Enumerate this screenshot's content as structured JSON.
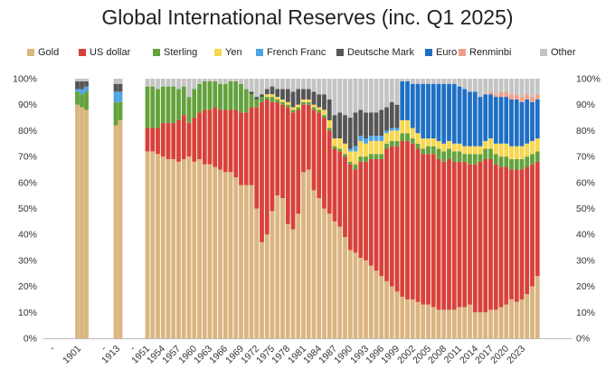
{
  "chart_data": {
    "type": "bar",
    "stacked": true,
    "title": "Global International Reserves (inc. Q1 2025)",
    "xlabel": "",
    "ylabel": "",
    "ylim": [
      0,
      100
    ],
    "y_tick_labels": [
      "0%",
      "10%",
      "20%",
      "30%",
      "40%",
      "50%",
      "60%",
      "70%",
      "80%",
      "90%",
      "100%"
    ],
    "grid": false,
    "legend_position": "top",
    "x_tick_labels": [
      "-",
      "1901",
      "-",
      "1913",
      "-",
      "1951",
      "1954",
      "1957",
      "1960",
      "1963",
      "1966",
      "1969",
      "1972",
      "1975",
      "1978",
      "1981",
      "1984",
      "1987",
      "1990",
      "1993",
      "1996",
      "1999",
      "2002",
      "2005",
      "2008",
      "2011",
      "2014",
      "2017",
      "2020",
      "2023"
    ],
    "series": [
      {
        "name": "Gold",
        "color": "#dbb57f"
      },
      {
        "name": "US dollar",
        "color": "#d8413a"
      },
      {
        "name": "Sterling",
        "color": "#63a23c"
      },
      {
        "name": "Yen",
        "color": "#f8d64e"
      },
      {
        "name": "French Franc",
        "color": "#4ea3e4"
      },
      {
        "name": "Deutsche Mark",
        "color": "#555555"
      },
      {
        "name": "Euro",
        "color": "#1e6fc4"
      },
      {
        "name": "Renminbi",
        "color": "#eea08a"
      },
      {
        "name": "Other",
        "color": "#c4c4c4"
      }
    ],
    "bars": [
      {
        "x": "1899",
        "Gold": 90,
        "Sterling": 5,
        "French Franc": 1,
        "Deutsche Mark": 3,
        "Other": 1
      },
      {
        "x": "1900",
        "Gold": 89,
        "Sterling": 5,
        "French Franc": 2,
        "Deutsche Mark": 3,
        "Other": 1
      },
      {
        "x": "1901",
        "Gold": 88,
        "Sterling": 7,
        "French Franc": 2,
        "Deutsche Mark": 2,
        "Other": 1
      },
      {
        "x": "1912",
        "Gold": 82,
        "Sterling": 9,
        "French Franc": 4,
        "Deutsche Mark": 3,
        "Other": 2
      },
      {
        "x": "1913",
        "Gold": 84,
        "Sterling": 7,
        "French Franc": 4,
        "Deutsche Mark": 3,
        "Other": 2
      },
      {
        "x": "1950",
        "Gold": 72,
        "US dollar": 9,
        "Sterling": 16,
        "Other": 3
      },
      {
        "x": "1951",
        "Gold": 72,
        "US dollar": 9,
        "Sterling": 16,
        "Other": 3
      },
      {
        "x": "1952",
        "Gold": 71,
        "US dollar": 10,
        "Sterling": 15,
        "Other": 4
      },
      {
        "x": "1953",
        "Gold": 70,
        "US dollar": 13,
        "Sterling": 14,
        "Other": 3
      },
      {
        "x": "1954",
        "Gold": 69,
        "US dollar": 14,
        "Sterling": 14,
        "Other": 3
      },
      {
        "x": "1955",
        "Gold": 69,
        "US dollar": 14,
        "Sterling": 14,
        "Other": 3
      },
      {
        "x": "1956",
        "Gold": 68,
        "US dollar": 16,
        "Sterling": 12,
        "Other": 4
      },
      {
        "x": "1957",
        "Gold": 69,
        "US dollar": 17,
        "Sterling": 11,
        "Other": 3
      },
      {
        "x": "1958",
        "Gold": 70,
        "US dollar": 13,
        "Sterling": 10,
        "Other": 7
      },
      {
        "x": "1959",
        "Gold": 68,
        "US dollar": 17,
        "Sterling": 11,
        "Other": 4
      },
      {
        "x": "1960",
        "Gold": 69,
        "US dollar": 18,
        "Sterling": 11,
        "Other": 2
      },
      {
        "x": "1961",
        "Gold": 67,
        "US dollar": 21,
        "Sterling": 11,
        "Other": 1
      },
      {
        "x": "1962",
        "Gold": 67,
        "US dollar": 21,
        "Sterling": 11,
        "Other": 1
      },
      {
        "x": "1963",
        "Gold": 66,
        "US dollar": 23,
        "Sterling": 10,
        "Other": 1
      },
      {
        "x": "1964",
        "Gold": 65,
        "US dollar": 23,
        "Sterling": 10,
        "Other": 2
      },
      {
        "x": "1965",
        "Gold": 64,
        "US dollar": 24,
        "Sterling": 10,
        "Other": 2
      },
      {
        "x": "1966",
        "Gold": 64,
        "US dollar": 24,
        "Sterling": 11,
        "Other": 1
      },
      {
        "x": "1967",
        "Gold": 62,
        "US dollar": 26,
        "Sterling": 11,
        "Other": 1
      },
      {
        "x": "1968",
        "Gold": 59,
        "US dollar": 28,
        "Sterling": 11,
        "Other": 2
      },
      {
        "x": "1969",
        "Gold": 59,
        "US dollar": 28,
        "Sterling": 9,
        "Other": 4
      },
      {
        "x": "1970",
        "Gold": 59,
        "US dollar": 30,
        "Sterling": 5,
        "Deutsche Mark": 1,
        "Other": 5
      },
      {
        "x": "1971",
        "Gold": 50,
        "US dollar": 39,
        "Sterling": 3,
        "Deutsche Mark": 1,
        "Other": 7
      },
      {
        "x": "1972",
        "Gold": 37,
        "US dollar": 54,
        "Sterling": 2,
        "Deutsche Mark": 1,
        "Other": 6
      },
      {
        "x": "1973",
        "Gold": 40,
        "US dollar": 52,
        "Sterling": 1,
        "Yen": 1,
        "Deutsche Mark": 2,
        "Other": 4
      },
      {
        "x": "1974",
        "Gold": 49,
        "US dollar": 42,
        "Sterling": 2,
        "Yen": 1,
        "Deutsche Mark": 3,
        "Other": 3
      },
      {
        "x": "1975",
        "Gold": 55,
        "US dollar": 36,
        "Sterling": 1,
        "Yen": 1,
        "Deutsche Mark": 3,
        "Other": 4
      },
      {
        "x": "1976",
        "Gold": 54,
        "US dollar": 36,
        "Sterling": 1,
        "Yen": 1,
        "Deutsche Mark": 4,
        "Other": 4
      },
      {
        "x": "1977",
        "Gold": 44,
        "US dollar": 45,
        "Sterling": 1,
        "Yen": 1,
        "Deutsche Mark": 5,
        "Other": 4
      },
      {
        "x": "1978",
        "Gold": 42,
        "US dollar": 45,
        "Sterling": 1,
        "Yen": 1,
        "Deutsche Mark": 6,
        "Other": 5
      },
      {
        "x": "1979",
        "Gold": 48,
        "US dollar": 40,
        "Sterling": 1,
        "Yen": 1,
        "Deutsche Mark": 6,
        "Other": 4
      },
      {
        "x": "1980",
        "Gold": 64,
        "US dollar": 26,
        "Sterling": 1,
        "Yen": 1,
        "Deutsche Mark": 4,
        "Other": 4
      },
      {
        "x": "1981",
        "Gold": 65,
        "US dollar": 25,
        "Sterling": 1,
        "Yen": 1,
        "Deutsche Mark": 4,
        "Other": 4
      },
      {
        "x": "1982",
        "Gold": 57,
        "US dollar": 31,
        "Sterling": 1,
        "Yen": 1,
        "Deutsche Mark": 5,
        "Other": 5
      },
      {
        "x": "1983",
        "Gold": 54,
        "US dollar": 33,
        "Sterling": 1,
        "Yen": 1,
        "Deutsche Mark": 5,
        "Other": 6
      },
      {
        "x": "1984",
        "Gold": 50,
        "US dollar": 35,
        "Sterling": 1,
        "Yen": 2,
        "Deutsche Mark": 6,
        "Other": 6
      },
      {
        "x": "1985",
        "Gold": 48,
        "US dollar": 32,
        "Sterling": 1,
        "Yen": 3,
        "Deutsche Mark": 8,
        "Other": 8
      },
      {
        "x": "1986",
        "Gold": 45,
        "US dollar": 28,
        "Sterling": 1,
        "Yen": 3,
        "Deutsche Mark": 9,
        "Other": 14
      },
      {
        "x": "1987",
        "Gold": 43,
        "US dollar": 29,
        "Sterling": 1,
        "Yen": 4,
        "Deutsche Mark": 10,
        "Other": 13
      },
      {
        "x": "1988",
        "Gold": 39,
        "US dollar": 31,
        "Sterling": 1,
        "Yen": 4,
        "Deutsche Mark": 11,
        "Other": 14
      },
      {
        "x": "1989",
        "Gold": 34,
        "US dollar": 33,
        "Sterling": 1,
        "Yen": 4,
        "French Franc": 1,
        "Deutsche Mark": 12,
        "Other": 15
      },
      {
        "x": "1990",
        "Gold": 33,
        "US dollar": 32,
        "Sterling": 2,
        "Yen": 5,
        "French Franc": 2,
        "Deutsche Mark": 13,
        "Other": 13
      },
      {
        "x": "1991",
        "Gold": 31,
        "US dollar": 37,
        "Sterling": 2,
        "Yen": 6,
        "French Franc": 2,
        "Deutsche Mark": 10,
        "Other": 12
      },
      {
        "x": "1992",
        "Gold": 30,
        "US dollar": 38,
        "Sterling": 2,
        "Yen": 5,
        "French Franc": 2,
        "Deutsche Mark": 10,
        "Other": 13
      },
      {
        "x": "1993",
        "Gold": 28,
        "US dollar": 41,
        "Sterling": 2,
        "Yen": 5,
        "French Franc": 2,
        "Deutsche Mark": 9,
        "Other": 13
      },
      {
        "x": "1994",
        "Gold": 26,
        "US dollar": 43,
        "Sterling": 2,
        "Yen": 5,
        "French Franc": 2,
        "Deutsche Mark": 9,
        "Other": 13
      },
      {
        "x": "1995",
        "Gold": 24,
        "US dollar": 45,
        "Sterling": 2,
        "Yen": 5,
        "French Franc": 2,
        "Deutsche Mark": 10,
        "Other": 12
      },
      {
        "x": "1996",
        "Gold": 22,
        "US dollar": 51,
        "Sterling": 2,
        "Yen": 4,
        "French Franc": 1,
        "Deutsche Mark": 9,
        "Other": 11
      },
      {
        "x": "1997",
        "Gold": 20,
        "US dollar": 54,
        "Sterling": 2,
        "Yen": 4,
        "French Franc": 1,
        "Deutsche Mark": 10,
        "Other": 9
      },
      {
        "x": "1998",
        "Gold": 18,
        "US dollar": 56,
        "Sterling": 2,
        "Yen": 4,
        "French Franc": 1,
        "Deutsche Mark": 9,
        "Other": 10
      },
      {
        "x": "1999",
        "Gold": 16,
        "US dollar": 60,
        "Sterling": 3,
        "Yen": 5,
        "Euro": 15,
        "Other": 1
      },
      {
        "x": "2000",
        "Gold": 15,
        "US dollar": 61,
        "Sterling": 3,
        "Yen": 5,
        "Euro": 15,
        "Other": 1
      },
      {
        "x": "2001",
        "Gold": 15,
        "US dollar": 60,
        "Sterling": 2,
        "Yen": 4,
        "Euro": 17,
        "Other": 2
      },
      {
        "x": "2002",
        "Gold": 14,
        "US dollar": 59,
        "Sterling": 2,
        "Yen": 4,
        "Euro": 19,
        "Other": 2
      },
      {
        "x": "2003",
        "Gold": 13,
        "US dollar": 58,
        "Sterling": 2,
        "Yen": 4,
        "Euro": 21,
        "Other": 2
      },
      {
        "x": "2004",
        "Gold": 13,
        "US dollar": 58,
        "Sterling": 3,
        "Yen": 3,
        "Euro": 21,
        "Other": 2
      },
      {
        "x": "2005",
        "Gold": 12,
        "US dollar": 59,
        "Sterling": 3,
        "Yen": 3,
        "Euro": 21,
        "Other": 2
      },
      {
        "x": "2006",
        "Gold": 11,
        "US dollar": 58,
        "Sterling": 4,
        "Yen": 3,
        "Euro": 22,
        "Other": 2
      },
      {
        "x": "2007",
        "Gold": 11,
        "US dollar": 57,
        "Sterling": 4,
        "Yen": 3,
        "Euro": 23,
        "Other": 2
      },
      {
        "x": "2008",
        "Gold": 11,
        "US dollar": 58,
        "Sterling": 4,
        "Yen": 3,
        "Euro": 22,
        "Other": 2
      },
      {
        "x": "2009",
        "Gold": 11,
        "US dollar": 57,
        "Sterling": 4,
        "Yen": 3,
        "Euro": 23,
        "Other": 2
      },
      {
        "x": "2010",
        "Gold": 12,
        "US dollar": 56,
        "Sterling": 4,
        "Yen": 3,
        "Euro": 22,
        "Other": 3
      },
      {
        "x": "2011",
        "Gold": 12,
        "US dollar": 56,
        "Sterling": 3,
        "Yen": 3,
        "Euro": 22,
        "Other": 4
      },
      {
        "x": "2012",
        "Gold": 13,
        "US dollar": 54,
        "Sterling": 4,
        "Yen": 3,
        "Euro": 21,
        "Other": 5
      },
      {
        "x": "2013",
        "Gold": 10,
        "US dollar": 57,
        "Sterling": 4,
        "Yen": 3,
        "Euro": 21,
        "Other": 5
      },
      {
        "x": "2014",
        "Gold": 10,
        "US dollar": 58,
        "Sterling": 3,
        "Yen": 3,
        "Euro": 19,
        "Other": 7
      },
      {
        "x": "2015",
        "Gold": 10,
        "US dollar": 59,
        "Sterling": 4,
        "Yen": 3,
        "Euro": 18,
        "Other": 6
      },
      {
        "x": "2016",
        "Gold": 11,
        "US dollar": 58,
        "Sterling": 4,
        "Yen": 4,
        "Euro": 17,
        "Renminbi": 1,
        "Other": 5
      },
      {
        "x": "2017",
        "Gold": 11,
        "US dollar": 56,
        "Sterling": 4,
        "Yen": 4,
        "Euro": 18,
        "Renminbi": 1,
        "Other": 6
      },
      {
        "x": "2018",
        "Gold": 12,
        "US dollar": 54,
        "Sterling": 4,
        "Yen": 5,
        "Euro": 18,
        "Renminbi": 2,
        "Other": 5
      },
      {
        "x": "2019",
        "Gold": 13,
        "US dollar": 53,
        "Sterling": 4,
        "Yen": 5,
        "Euro": 18,
        "Renminbi": 2,
        "Other": 5
      },
      {
        "x": "2020",
        "Gold": 15,
        "US dollar": 50,
        "Sterling": 4,
        "Yen": 5,
        "Euro": 18,
        "Renminbi": 2,
        "Other": 6
      },
      {
        "x": "2021",
        "Gold": 14,
        "US dollar": 51,
        "Sterling": 4,
        "Yen": 5,
        "Euro": 18,
        "Renminbi": 2,
        "Other": 6
      },
      {
        "x": "2022",
        "Gold": 15,
        "US dollar": 50,
        "Sterling": 4,
        "Yen": 5,
        "Euro": 17,
        "Renminbi": 2,
        "Other": 7
      },
      {
        "x": "2023",
        "Gold": 17,
        "US dollar": 49,
        "Sterling": 4,
        "Yen": 5,
        "Euro": 17,
        "Renminbi": 2,
        "Other": 6
      },
      {
        "x": "2024",
        "Gold": 20,
        "US dollar": 47,
        "Sterling": 4,
        "Yen": 5,
        "Euro": 15,
        "Renminbi": 2,
        "Other": 7
      },
      {
        "x": "Q1 2025",
        "Gold": 24,
        "US dollar": 44,
        "Sterling": 4,
        "Yen": 5,
        "Euro": 15,
        "Renminbi": 2,
        "Other": 6
      }
    ]
  }
}
